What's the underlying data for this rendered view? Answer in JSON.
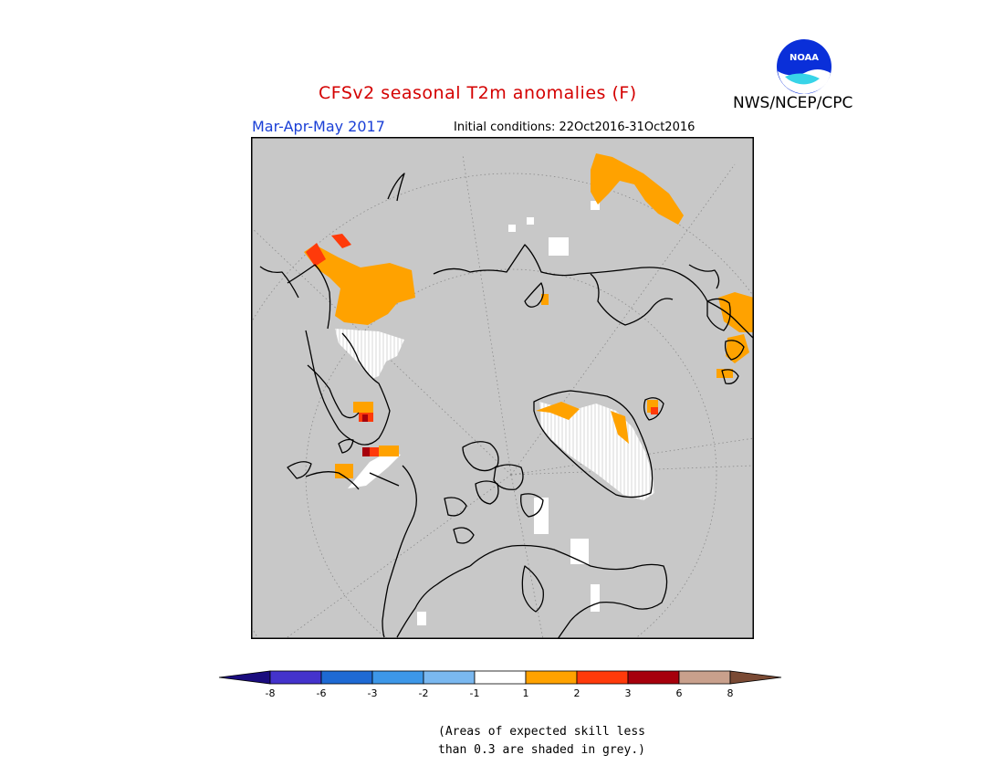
{
  "header": {
    "title": "CFSv2 seasonal T2m anomalies (F)",
    "agency": "NWS/NCEP/CPC",
    "season": "Mar-Apr-May 2017",
    "initial_conditions": "Initial conditions: 22Oct2016-31Oct2016",
    "logo_text": "NOAA"
  },
  "legend": {
    "tick_labels": [
      "-8",
      "-6",
      "-3",
      "-2",
      "-1",
      "1",
      "2",
      "3",
      "6",
      "8"
    ],
    "colors": [
      "#1a0c7e",
      "#4433cc",
      "#1e6ad4",
      "#3d97e8",
      "#7ab8f0",
      "#ffffff",
      "#ffa200",
      "#ff3a0a",
      "#a6000c",
      "#c9a08c",
      "#7a4a34"
    ]
  },
  "colors": {
    "skill_grey": "#c8c8c8",
    "title_red": "#d40000",
    "season_blue": "#1a3fd6"
  },
  "footnote": {
    "line1": "(Areas of expected skill less",
    "line2": "than 0.3 are shaded in grey.)"
  }
}
